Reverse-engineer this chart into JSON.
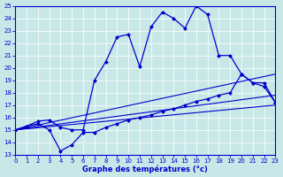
{
  "bg_color": "#c8e8e8",
  "line_color": "#0000cc",
  "xlim": [
    0,
    23
  ],
  "ylim": [
    13,
    25
  ],
  "xticks": [
    0,
    1,
    2,
    3,
    4,
    5,
    6,
    7,
    8,
    9,
    10,
    11,
    12,
    13,
    14,
    15,
    16,
    17,
    18,
    19,
    20,
    21,
    22,
    23
  ],
  "yticks": [
    13,
    14,
    15,
    16,
    17,
    18,
    19,
    20,
    21,
    22,
    23,
    24,
    25
  ],
  "xlabel": "Graphe des températures (°c)",
  "curve1_x": [
    0,
    1,
    2,
    3,
    4,
    5,
    6,
    7,
    8,
    9,
    10,
    11,
    12,
    13,
    14,
    15,
    16,
    17,
    18,
    19,
    20,
    21,
    22,
    23
  ],
  "curve1_y": [
    15.0,
    15.3,
    15.7,
    15.8,
    15.2,
    15.0,
    15.0,
    19.0,
    20.5,
    22.5,
    22.7,
    20.1,
    23.3,
    24.5,
    24.0,
    23.2,
    25.0,
    24.3,
    21.0,
    21.0,
    19.5,
    18.8,
    18.5,
    17.2
  ],
  "curve2_x": [
    0,
    1,
    2,
    3,
    4,
    5,
    6,
    7,
    8,
    9,
    10,
    11,
    12,
    13,
    14,
    15,
    16,
    17,
    18,
    19,
    20,
    21,
    22,
    23
  ],
  "curve2_y": [
    15.0,
    15.3,
    15.5,
    15.0,
    13.3,
    13.8,
    14.8,
    14.8,
    15.2,
    15.5,
    15.8,
    16.0,
    16.2,
    16.5,
    16.7,
    17.0,
    17.3,
    17.5,
    17.8,
    18.0,
    19.5,
    18.8,
    18.8,
    17.2
  ],
  "line1_x": [
    0,
    23
  ],
  "line1_y": [
    15.0,
    19.5
  ],
  "line2_x": [
    0,
    23
  ],
  "line2_y": [
    15.0,
    17.8
  ],
  "line3_x": [
    0,
    23
  ],
  "line3_y": [
    15.0,
    17.0
  ]
}
